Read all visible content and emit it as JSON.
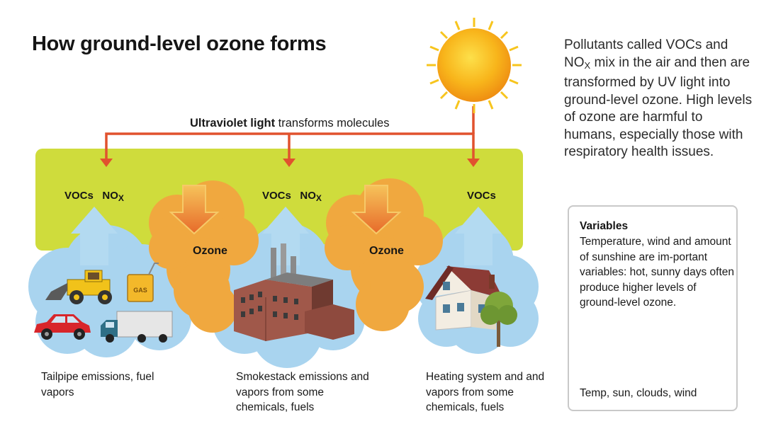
{
  "title": "How ground-level ozone forms",
  "uv": {
    "bold": "Ultraviolet light",
    "rest": " transforms molecules"
  },
  "description": {
    "part1": "Pollutants called VOCs and NO",
    "sub": "X",
    "part2": " mix in the air and then are transformed by UV light into ground-level ozone. High levels of ozone are harmful to humans, especially those with respiratory health issues."
  },
  "molecules": {
    "vocs": "VOCs",
    "no": "NO",
    "x": "X"
  },
  "ozone_label": "Ozone",
  "captions": {
    "left": "Tailpipe emissions, fuel vapors",
    "middle": "Smokestack emissions and vapors from some chemicals, fuels",
    "right": "Heating system and and vapors from some chemicals, fuels"
  },
  "gas_can_label": "GAS",
  "variables": {
    "heading": "Variables",
    "body": "Temperature, wind and amount of sunshine are im-portant variables: hot, sunny days often produce higher levels of ground-level ozone.",
    "icons_caption": "Temp, sun, clouds, wind"
  },
  "colors": {
    "band": "#cfdc3c",
    "ozone_cloud": "#f0a83f",
    "emission_cloud": "#a9d4ef",
    "arrow_red": "#e1522e",
    "sun": "#f7b41a"
  }
}
